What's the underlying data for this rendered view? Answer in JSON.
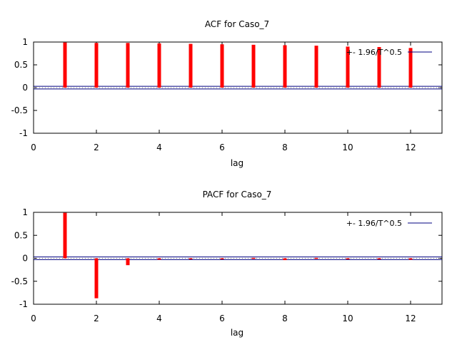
{
  "chart_data": [
    {
      "type": "bar",
      "title": "ACF for Caso_7",
      "xlabel": "lag",
      "ylabel": "",
      "xlim": [
        0,
        13
      ],
      "ylim": [
        -1,
        1
      ],
      "xticks": [
        "0",
        "2",
        "4",
        "6",
        "8",
        "10",
        "12"
      ],
      "yticks": [
        "1",
        "0.5",
        "0",
        "-0.5",
        "-1"
      ],
      "x": [
        1,
        2,
        3,
        4,
        5,
        6,
        7,
        8,
        9,
        10,
        11,
        12
      ],
      "values": [
        0.99,
        0.98,
        0.98,
        0.97,
        0.96,
        0.95,
        0.94,
        0.93,
        0.92,
        0.9,
        0.89,
        0.87
      ],
      "bar_color": "#ff0000",
      "band": 0.03,
      "band_label": "+- 1.96/T^0.5",
      "band_color": "#000080",
      "legend_position": "top-right",
      "grid": false
    },
    {
      "type": "bar",
      "title": "PACF for Caso_7",
      "xlabel": "lag",
      "ylabel": "",
      "xlim": [
        0,
        13
      ],
      "ylim": [
        -1,
        1
      ],
      "xticks": [
        "0",
        "2",
        "4",
        "6",
        "8",
        "10",
        "12"
      ],
      "yticks": [
        "1",
        "0.5",
        "0",
        "-0.5",
        "-1"
      ],
      "x": [
        1,
        2,
        3,
        4,
        5,
        6,
        7,
        8,
        9,
        10,
        11,
        12
      ],
      "values": [
        0.99,
        -0.87,
        -0.15,
        -0.03,
        0.0,
        0.0,
        0.01,
        -0.04,
        0.01,
        0.0,
        -0.02,
        -0.03
      ],
      "bar_color": "#ff0000",
      "band": 0.03,
      "band_label": "+- 1.96/T^0.5",
      "band_color": "#000080",
      "legend_position": "top-right",
      "grid": false
    }
  ]
}
